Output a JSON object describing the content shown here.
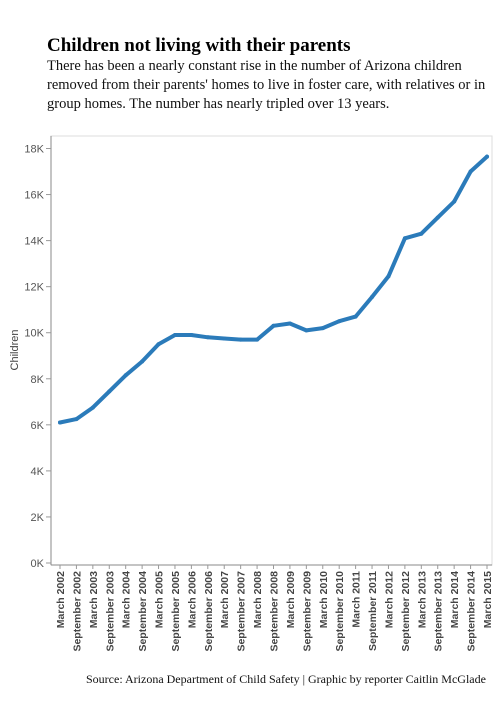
{
  "header": {
    "title": "Children not living with their parents",
    "subtitle": "There has been a nearly constant rise in the number of Arizona children removed from their parents' homes to live in foster care, with relatives or in group homes. The number has nearly tripled over 13 years."
  },
  "footer": {
    "source": "Source: Arizona Department of Child Safety | Graphic by reporter Caitlin McGlade"
  },
  "colors": {
    "line": "#2b7bba",
    "axis": "#888888",
    "frame": "#dddddd",
    "tick": "#999999"
  },
  "chart_data": {
    "type": "line",
    "title": "Children not living with their parents",
    "xlabel": "",
    "ylabel": "Children",
    "ylim": [
      0,
      18500
    ],
    "grid": false,
    "legend": "none",
    "y_ticks": [
      {
        "value": 0,
        "label": "0K"
      },
      {
        "value": 2000,
        "label": "2K"
      },
      {
        "value": 4000,
        "label": "4K"
      },
      {
        "value": 6000,
        "label": "6K"
      },
      {
        "value": 8000,
        "label": "8K"
      },
      {
        "value": 10000,
        "label": "10K"
      },
      {
        "value": 12000,
        "label": "12K"
      },
      {
        "value": 14000,
        "label": "14K"
      },
      {
        "value": 16000,
        "label": "16K"
      },
      {
        "value": 18000,
        "label": "18K"
      }
    ],
    "categories": [
      "March 2002",
      "September 2002",
      "March 2003",
      "September 2003",
      "March 2004",
      "September 2004",
      "March 2005",
      "September 2005",
      "March 2006",
      "September 2006",
      "March 2007",
      "September 2007",
      "March 2008",
      "September 2008",
      "March 2009",
      "September 2009",
      "March 2010",
      "September 2010",
      "March 2011",
      "September 2011",
      "March 2012",
      "September 2012",
      "March 2013",
      "September 2013",
      "March 2014",
      "September 2014",
      "March 2015"
    ],
    "series": [
      {
        "values": [
          6100,
          6250,
          6750,
          7450,
          8150,
          8750,
          9500,
          9900,
          9900,
          9800,
          9750,
          9700,
          9700,
          10300,
          10400,
          10100,
          10200,
          10500,
          10700,
          11550,
          12450,
          14100,
          14300,
          15000,
          15700,
          17000,
          17650
        ]
      }
    ]
  }
}
